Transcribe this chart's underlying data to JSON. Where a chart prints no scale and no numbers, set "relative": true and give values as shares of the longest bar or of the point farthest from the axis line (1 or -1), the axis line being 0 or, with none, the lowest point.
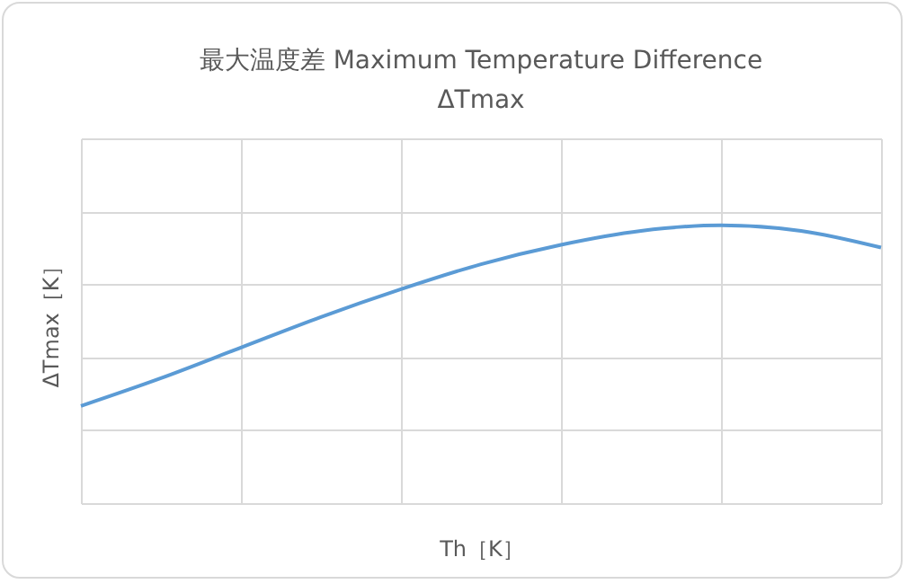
{
  "chart_data": {
    "type": "line",
    "title": "最大温度差 Maximum Temperature Difference",
    "subtitle": "ΔTmax",
    "xlabel": "Th［K］",
    "ylabel": "ΔTmax［K］",
    "categories": [
      null,
      null,
      null,
      null,
      null,
      null,
      null,
      null,
      null,
      null,
      null
    ],
    "series": [
      {
        "color": "#5b9bd5",
        "values": [
          0.35,
          0.45,
          0.56,
          0.67,
          0.77,
          0.86,
          0.93,
          0.98,
          1.0,
          0.98,
          0.92
        ]
      }
    ],
    "relative": true,
    "grid": true,
    "legend": false,
    "marker": "none",
    "line_style": "solid"
  }
}
